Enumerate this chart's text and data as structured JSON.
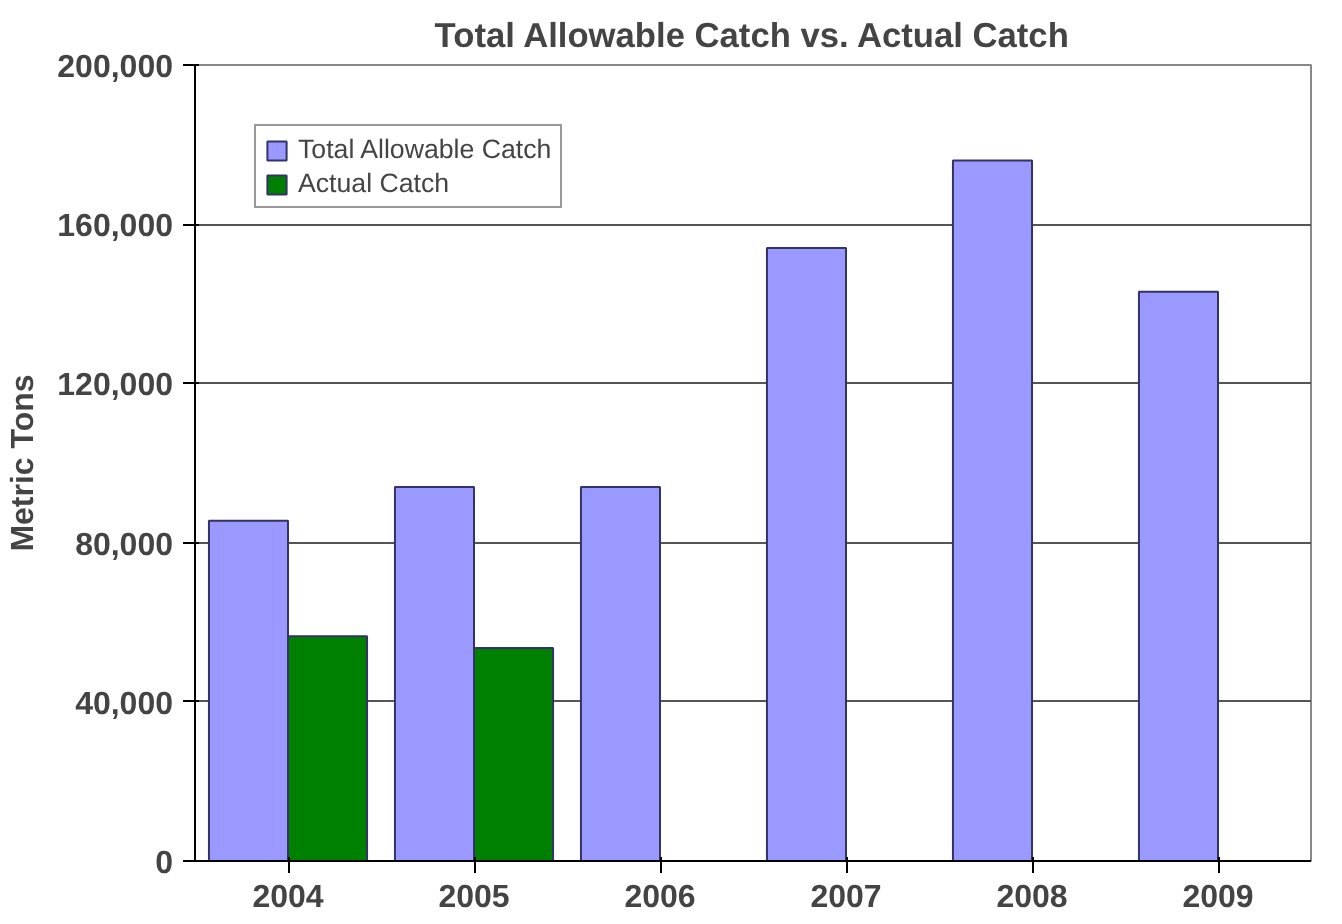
{
  "chart_data": {
    "type": "bar",
    "title": "Total Allowable Catch vs. Actual Catch",
    "ylabel": "Metric Tons",
    "categories": [
      "2004",
      "2005",
      "2006",
      "2007",
      "2008",
      "2009"
    ],
    "series": [
      {
        "name": "Total Allowable Catch",
        "color": "#9999ff",
        "values": [
          85500,
          94000,
          94000,
          154000,
          176000,
          143000
        ]
      },
      {
        "name": "Actual Catch",
        "color": "#008000",
        "values": [
          56500,
          53500,
          null,
          null,
          null,
          null
        ]
      }
    ],
    "ylim": [
      0,
      200000
    ],
    "yticks": [
      {
        "value": 0,
        "label": "0"
      },
      {
        "value": 40000,
        "label": "40,000"
      },
      {
        "value": 80000,
        "label": "80,000"
      },
      {
        "value": 120000,
        "label": "120,000"
      },
      {
        "value": 160000,
        "label": "160,000"
      },
      {
        "value": 200000,
        "label": "200,000"
      }
    ],
    "grid": "y",
    "legend": "top left"
  }
}
